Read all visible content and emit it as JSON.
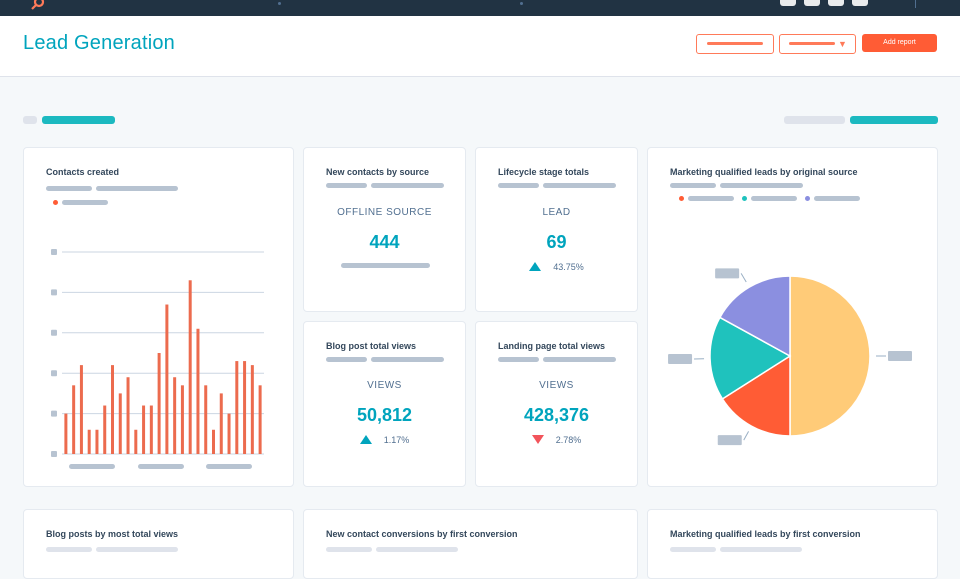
{
  "header": {
    "title": "Lead Generation",
    "add_report_label": "Add report"
  },
  "colors": {
    "accent": "#00a4bd",
    "orange": "#ff5c35",
    "navy": "#213343",
    "pie_yellow": "#ffcb78",
    "pie_red": "#ff5c35",
    "pie_teal": "#1fc2bd",
    "pie_purple": "#8b8fe0",
    "bar": "#ec6b4e"
  },
  "icons": {
    "logo": "sprocket-logo-icon",
    "up": "triangle-up-icon",
    "down": "triangle-down-icon",
    "dropdown": "chevron-down-icon"
  },
  "cards": {
    "contacts_created": {
      "title": "Contacts created"
    },
    "new_contacts_by_source": {
      "title": "New contacts by source",
      "caption": "OFFLINE SOURCE",
      "value": "444"
    },
    "lifecycle_stage_totals": {
      "title": "Lifecycle stage totals",
      "caption": "LEAD",
      "value": "69",
      "delta": "43.75%",
      "direction": "up"
    },
    "mql_by_original_source": {
      "title": "Marketing qualified leads by original source"
    },
    "blog_post_total_views": {
      "title": "Blog post total views",
      "caption": "VIEWS",
      "value": "50,812",
      "delta": "1.17%",
      "direction": "up"
    },
    "landing_page_total_views": {
      "title": "Landing page total views",
      "caption": "VIEWS",
      "value": "428,376",
      "delta": "2.78%",
      "direction": "down"
    },
    "blog_posts_by_most_total_views": {
      "title": "Blog posts by most total views"
    },
    "new_contact_conversions": {
      "title": "New contact conversions by first conversion"
    },
    "mql_by_first_conversion": {
      "title": "Marketing qualified leads by first conversion"
    }
  },
  "chart_data": [
    {
      "type": "bar",
      "values": [
        10,
        17,
        22,
        6,
        6,
        12,
        22,
        15,
        19,
        6,
        12,
        12,
        25,
        37,
        19,
        17,
        43,
        31,
        17,
        6,
        15,
        10,
        23,
        23,
        22,
        17
      ],
      "ylim": [
        0,
        50
      ],
      "grid": true
    },
    {
      "type": "pie",
      "values": [
        50,
        16,
        17,
        17
      ],
      "colors": [
        "#ffcb78",
        "#ff5c35",
        "#1fc2bd",
        "#8b8fe0"
      ]
    }
  ]
}
